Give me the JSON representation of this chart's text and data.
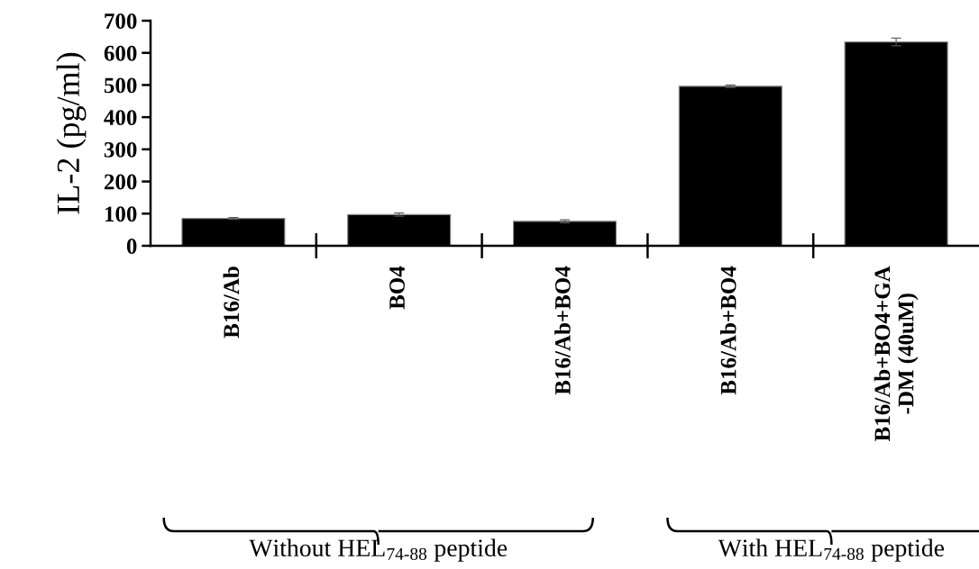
{
  "chart_data": {
    "type": "bar",
    "ylabel": "IL-2 (pg/ml)",
    "categories": [
      "B16/Ab",
      "BO4",
      "B16/Ab+BO4",
      "B16/Ab+BO4",
      "B16/Ab+BO4+GA\n-DM (40uM)"
    ],
    "values": [
      85,
      97,
      76,
      496,
      634
    ],
    "errors": [
      3,
      5,
      5,
      4,
      12
    ],
    "color": "#000000",
    "ylim": [
      0,
      700
    ],
    "yticks": [
      0,
      100,
      200,
      300,
      400,
      500,
      600,
      700
    ],
    "annotations": [
      "Without HEL$_{74-88}$ peptide",
      "With HEL$_{74-88}$ peptide"
    ]
  }
}
